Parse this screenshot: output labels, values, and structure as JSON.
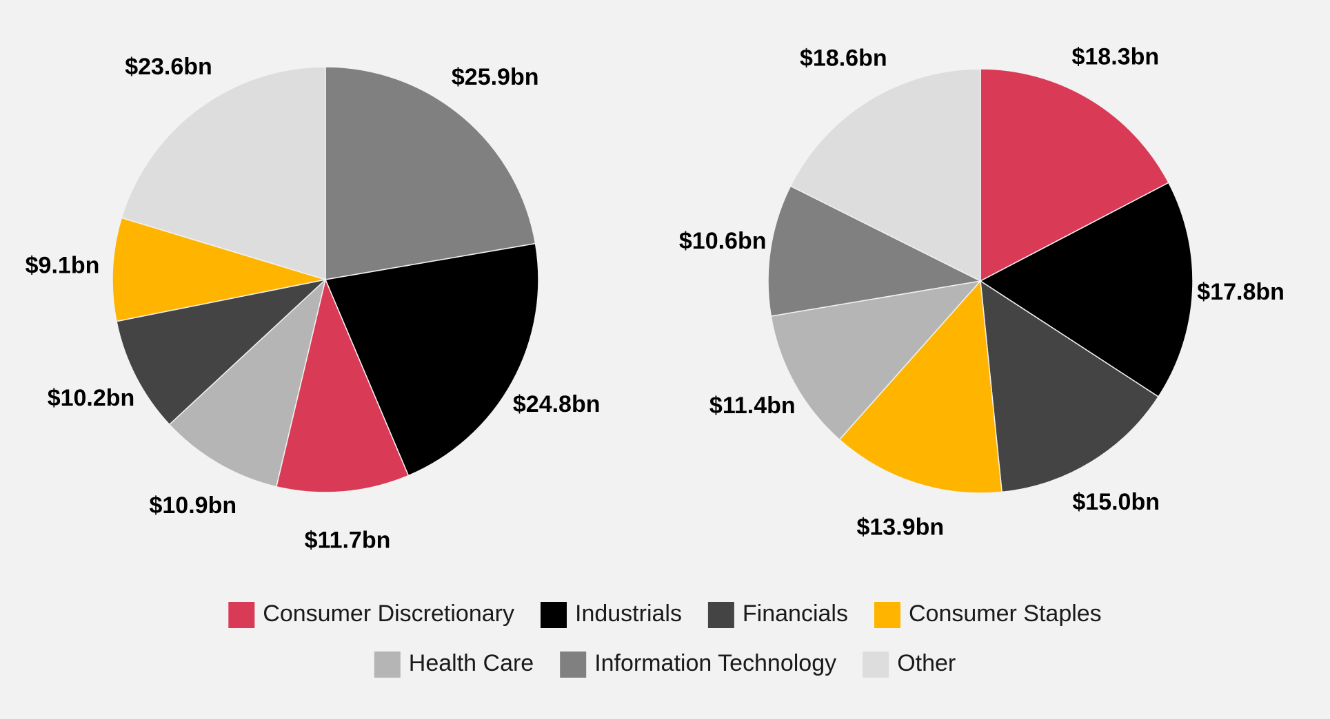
{
  "chart_data": [
    {
      "type": "pie",
      "title": "",
      "start_angle_deg": 0,
      "direction": "clockwise",
      "slices": [
        {
          "category": "Information Technology",
          "label": "$25.9bn",
          "value": 25.9,
          "color": "#808080"
        },
        {
          "category": "Industrials",
          "label": "$24.8bn",
          "value": 24.8,
          "color": "#000000"
        },
        {
          "category": "Consumer Discretionary",
          "label": "$11.7bn",
          "value": 11.7,
          "color": "#d93a56"
        },
        {
          "category": "Health Care",
          "label": "$10.9bn",
          "value": 10.9,
          "color": "#b5b5b5"
        },
        {
          "category": "Financials",
          "label": "$10.2bn",
          "value": 10.2,
          "color": "#444444"
        },
        {
          "category": "Consumer Staples",
          "label": "$9.1bn",
          "value": 9.1,
          "color": "#ffb500"
        },
        {
          "category": "Other",
          "label": "$23.6bn",
          "value": 23.6,
          "color": "#dddddd"
        }
      ]
    },
    {
      "type": "pie",
      "title": "",
      "start_angle_deg": 0,
      "direction": "clockwise",
      "slices": [
        {
          "category": "Consumer Discretionary",
          "label": "$18.3bn",
          "value": 18.3,
          "color": "#d93a56"
        },
        {
          "category": "Industrials",
          "label": "$17.8bn",
          "value": 17.8,
          "color": "#000000"
        },
        {
          "category": "Financials",
          "label": "$15.0bn",
          "value": 15.0,
          "color": "#444444"
        },
        {
          "category": "Consumer Staples",
          "label": "$13.9bn",
          "value": 13.9,
          "color": "#ffb500"
        },
        {
          "category": "Health Care",
          "label": "$11.4bn",
          "value": 11.4,
          "color": "#b5b5b5"
        },
        {
          "category": "Information Technology",
          "label": "$10.6bn",
          "value": 10.6,
          "color": "#808080"
        },
        {
          "category": "Other",
          "label": "$18.6bn",
          "value": 18.6,
          "color": "#dddddd"
        }
      ]
    }
  ],
  "legend": {
    "placement": "bottom",
    "items": [
      {
        "name": "Consumer Discretionary",
        "color": "#d93a56"
      },
      {
        "name": "Industrials",
        "color": "#000000"
      },
      {
        "name": "Financials",
        "color": "#444444"
      },
      {
        "name": "Consumer Staples",
        "color": "#ffb500"
      },
      {
        "name": "Health Care",
        "color": "#b5b5b5"
      },
      {
        "name": "Information Technology",
        "color": "#808080"
      },
      {
        "name": "Other",
        "color": "#dddddd"
      }
    ]
  }
}
